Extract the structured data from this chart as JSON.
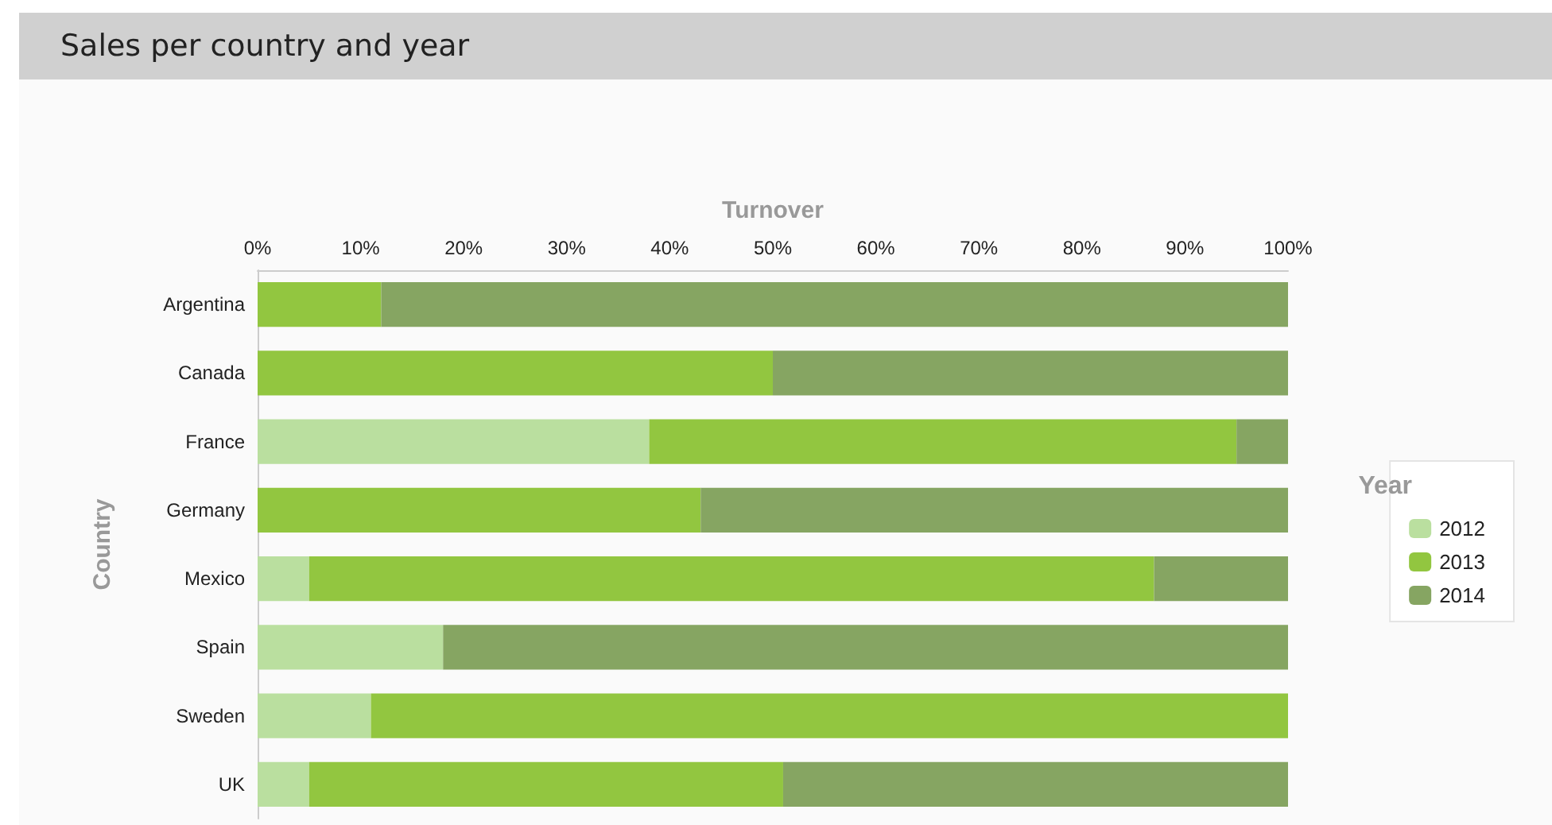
{
  "chart_data": {
    "type": "bar",
    "title": "Sales per country and year",
    "xlabel": "Turnover",
    "ylabel": "Country",
    "legend_title": "Year",
    "orientation": "horizontal",
    "stacked": true,
    "legend": "right",
    "grid": false,
    "categories": [
      "Argentina",
      "Canada",
      "France",
      "Germany",
      "Mexico",
      "Spain",
      "Sweden",
      "UK"
    ],
    "xlim": [
      0,
      100
    ],
    "xticks": [
      {
        "value": 0,
        "label": "0%"
      },
      {
        "value": 10,
        "label": "10%"
      },
      {
        "value": 20,
        "label": "20%"
      },
      {
        "value": 30,
        "label": "30%"
      },
      {
        "value": 40,
        "label": "40%"
      },
      {
        "value": 50,
        "label": "50%"
      },
      {
        "value": 60,
        "label": "60%"
      },
      {
        "value": 70,
        "label": "70%"
      },
      {
        "value": 80,
        "label": "80%"
      },
      {
        "value": 90,
        "label": "90%"
      },
      {
        "value": 100,
        "label": "100%"
      }
    ],
    "series": [
      {
        "name": "2012",
        "color": "#badf9f",
        "values": [
          0,
          0,
          38,
          0,
          5,
          18,
          11,
          5
        ]
      },
      {
        "name": "2013",
        "color": "#92c640",
        "values": [
          12,
          50,
          57,
          43,
          82,
          0,
          89,
          46
        ]
      },
      {
        "name": "2014",
        "color": "#86a562",
        "values": [
          88,
          50,
          5,
          57,
          13,
          82,
          0,
          49
        ]
      }
    ]
  }
}
